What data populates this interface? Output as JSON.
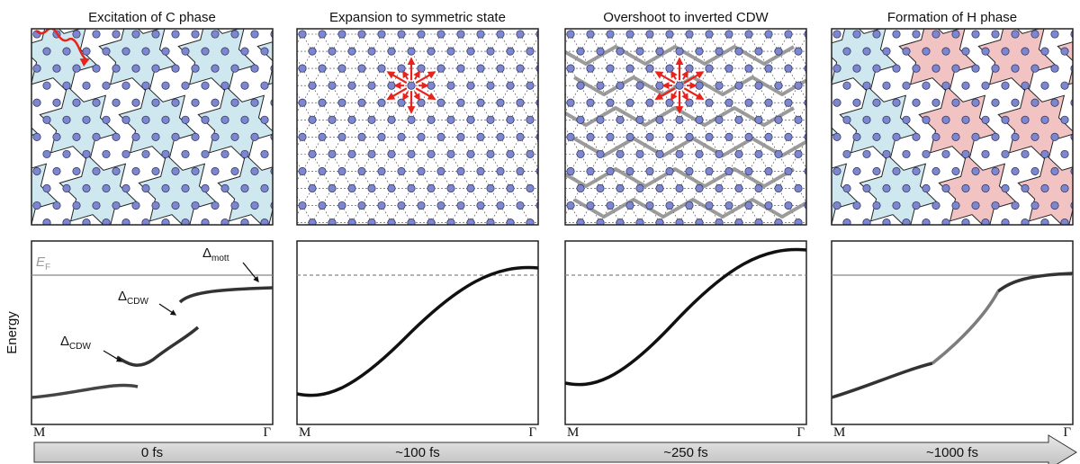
{
  "panels": [
    {
      "title": "Excitation of C phase",
      "time": "0 fs",
      "k_labels": [
        "M",
        "Γ"
      ]
    },
    {
      "title": "Expansion to symmetric state",
      "time": "~100 fs",
      "k_labels": [
        "M",
        "Γ"
      ]
    },
    {
      "title": "Overshoot to inverted CDW",
      "time": "~250 fs",
      "k_labels": [
        "M",
        "Γ"
      ]
    },
    {
      "title": "Formation of H phase",
      "time": "~1000 fs",
      "k_labels": [
        "M",
        "Γ"
      ]
    }
  ],
  "energy_label": "Energy",
  "annotations": [
    {
      "symbol": "E",
      "sub": "F"
    },
    {
      "symbol": "Δ",
      "sub": "mott"
    },
    {
      "symbol": "Δ",
      "sub": "CDW"
    },
    {
      "symbol": "Δ",
      "sub": "CDW"
    }
  ]
}
